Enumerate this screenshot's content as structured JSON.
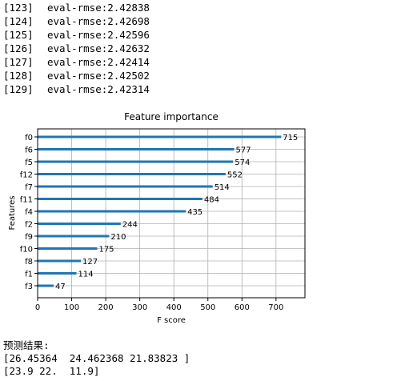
{
  "log": [
    {
      "index": "[123]",
      "text": "eval-rmse:2.42838"
    },
    {
      "index": "[124]",
      "text": "eval-rmse:2.42698"
    },
    {
      "index": "[125]",
      "text": "eval-rmse:2.42596"
    },
    {
      "index": "[126]",
      "text": "eval-rmse:2.42632"
    },
    {
      "index": "[127]",
      "text": "eval-rmse:2.42414"
    },
    {
      "index": "[128]",
      "text": "eval-rmse:2.42502"
    },
    {
      "index": "[129]",
      "text": "eval-rmse:2.42314"
    }
  ],
  "chart_data": {
    "type": "bar",
    "orientation": "horizontal",
    "title": "Feature importance",
    "xlabel": "F score",
    "ylabel": "Features",
    "categories": [
      "f0",
      "f6",
      "f5",
      "f12",
      "f7",
      "f11",
      "f4",
      "f2",
      "f9",
      "f10",
      "f8",
      "f1",
      "f3"
    ],
    "values": [
      715,
      577,
      574,
      552,
      514,
      484,
      435,
      244,
      210,
      175,
      127,
      114,
      47
    ],
    "xlim": [
      0,
      785
    ],
    "xticks": [
      0,
      100,
      200,
      300,
      400,
      500,
      600,
      700
    ],
    "grid": true,
    "bar_color": "#1f77b4"
  },
  "result": {
    "label": "预测结果:",
    "pred": "[26.45364  24.462368 21.83823 ]",
    "truth": "[23.9 22.  11.9]"
  }
}
